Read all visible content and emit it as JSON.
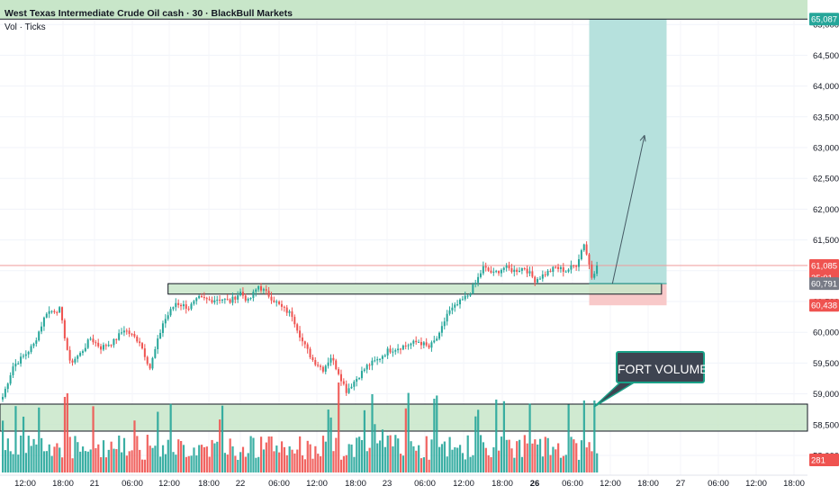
{
  "header": {
    "title": "West Texas Intermediate Crude Oil cash · 30 · BlackBull Markets",
    "indicator": "Vol · Ticks"
  },
  "colors": {
    "up": "#26a69a",
    "down": "#ef5350",
    "zone_fill": "#c8e6c9",
    "target_fill": "#b2dfdb",
    "stop_fill": "#f8c9c9",
    "callout_bg": "#3e4451",
    "callout_border": "#1aa087"
  },
  "chart_data": {
    "type": "candlestick",
    "y_axis": {
      "ticks": [
        58000,
        58500,
        59000,
        59500,
        60000,
        60500,
        61000,
        61500,
        62000,
        62500,
        63000,
        63500,
        64000,
        64500,
        65000
      ],
      "tick_labels": [
        "58,000",
        "58,500",
        "59,000",
        "59,500",
        "60,000",
        "60,500",
        "61,000",
        "61,500",
        "62,000",
        "62,500",
        "63,000",
        "63,500",
        "64,000",
        "64,500",
        "65,000"
      ]
    },
    "x_axis": {
      "labels": [
        "12:00",
        "18:00",
        "21",
        "06:00",
        "12:00",
        "18:00",
        "22",
        "06:00",
        "12:00",
        "18:00",
        "23",
        "06:00",
        "12:00",
        "18:00",
        "26",
        "06:00",
        "12:00",
        "18:00",
        "27",
        "06:00",
        "12:00",
        "18:00"
      ],
      "bold_labels": [
        "26"
      ]
    },
    "price_tags": {
      "top": "65,087",
      "last": "61,085",
      "countdown": "25:01",
      "entry": "60,791",
      "stop": "60,438",
      "volume": "281"
    },
    "levels": {
      "target": 65087,
      "entry": 60791,
      "stop": 60438,
      "last": 61085,
      "resistance_zone": [
        60620,
        60790
      ]
    },
    "volume_zone_label": "FORT VOLUME",
    "series_keypoints": [
      {
        "t": 0,
        "p": 58950
      },
      {
        "t": 4,
        "p": 59450
      },
      {
        "t": 9,
        "p": 59650
      },
      {
        "t": 12,
        "p": 59800
      },
      {
        "t": 17,
        "p": 60330
      },
      {
        "t": 22,
        "p": 60370
      },
      {
        "t": 26,
        "p": 59500
      },
      {
        "t": 30,
        "p": 59650
      },
      {
        "t": 34,
        "p": 59900
      },
      {
        "t": 38,
        "p": 59750
      },
      {
        "t": 43,
        "p": 59850
      },
      {
        "t": 47,
        "p": 60050
      },
      {
        "t": 53,
        "p": 59850
      },
      {
        "t": 57,
        "p": 59420
      },
      {
        "t": 62,
        "p": 60150
      },
      {
        "t": 67,
        "p": 60480
      },
      {
        "t": 72,
        "p": 60400
      },
      {
        "t": 76,
        "p": 60550
      },
      {
        "t": 80,
        "p": 60520
      },
      {
        "t": 84,
        "p": 60550
      },
      {
        "t": 88,
        "p": 60500
      },
      {
        "t": 92,
        "p": 60650
      },
      {
        "t": 95,
        "p": 60500
      },
      {
        "t": 99,
        "p": 60750
      },
      {
        "t": 103,
        "p": 60600
      },
      {
        "t": 108,
        "p": 60400
      },
      {
        "t": 112,
        "p": 60280
      },
      {
        "t": 116,
        "p": 59850
      },
      {
        "t": 120,
        "p": 59550
      },
      {
        "t": 124,
        "p": 59400
      },
      {
        "t": 127,
        "p": 59600
      },
      {
        "t": 130,
        "p": 59350
      },
      {
        "t": 133,
        "p": 59050
      },
      {
        "t": 137,
        "p": 59250
      },
      {
        "t": 141,
        "p": 59450
      },
      {
        "t": 145,
        "p": 59550
      },
      {
        "t": 149,
        "p": 59700
      },
      {
        "t": 153,
        "p": 59750
      },
      {
        "t": 157,
        "p": 59800
      },
      {
        "t": 161,
        "p": 59850
      },
      {
        "t": 165,
        "p": 59750
      },
      {
        "t": 169,
        "p": 59950
      },
      {
        "t": 172,
        "p": 60300
      },
      {
        "t": 176,
        "p": 60450
      },
      {
        "t": 180,
        "p": 60600
      },
      {
        "t": 183,
        "p": 60800
      },
      {
        "t": 186,
        "p": 61050
      },
      {
        "t": 190,
        "p": 60950
      },
      {
        "t": 194,
        "p": 61050
      },
      {
        "t": 198,
        "p": 61000
      },
      {
        "t": 202,
        "p": 61050
      },
      {
        "t": 206,
        "p": 60850
      },
      {
        "t": 210,
        "p": 60950
      },
      {
        "t": 214,
        "p": 61050
      },
      {
        "t": 218,
        "p": 61000
      },
      {
        "t": 222,
        "p": 61100
      },
      {
        "t": 225,
        "p": 61450
      },
      {
        "t": 227,
        "p": 61100
      },
      {
        "t": 228,
        "p": 60900
      },
      {
        "t": 230,
        "p": 61085
      }
    ]
  }
}
